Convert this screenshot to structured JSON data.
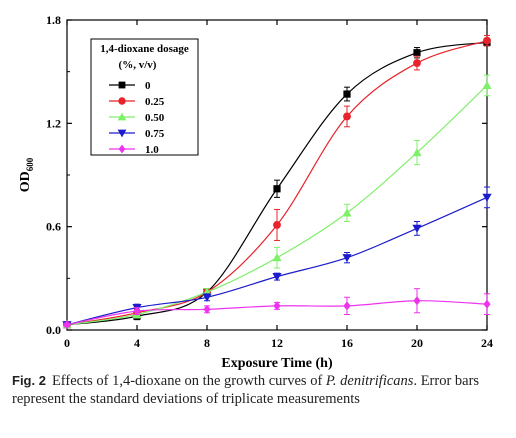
{
  "chart_data": {
    "type": "line",
    "xlabel": "Exposure Time (h)",
    "ylabel": "OD",
    "ylabel_sub": "600",
    "xlim": [
      0,
      24
    ],
    "ylim": [
      0.0,
      1.8
    ],
    "xticks": [
      0,
      4,
      8,
      12,
      16,
      20,
      24
    ],
    "yticks": [
      0.0,
      0.6,
      1.2,
      1.8
    ],
    "ytick_labels": [
      "0.0",
      "0.6",
      "1.2",
      "1.8"
    ],
    "grid": false,
    "legend": {
      "placement": "top-left",
      "title_line1": "1,4-dioxane dosage",
      "title_line2": "(%, v/v)"
    },
    "x": [
      0,
      4,
      8,
      12,
      16,
      20,
      24
    ],
    "series": [
      {
        "name": "0",
        "color": "#000000",
        "marker": "square",
        "values": [
          0.03,
          0.08,
          0.22,
          0.82,
          1.37,
          1.61,
          1.67
        ],
        "errors": [
          0.01,
          0.02,
          0.02,
          0.05,
          0.04,
          0.03,
          0.02
        ]
      },
      {
        "name": "0.25",
        "color": "#e8232b",
        "marker": "circle",
        "values": [
          0.03,
          0.1,
          0.22,
          0.61,
          1.24,
          1.55,
          1.68
        ],
        "errors": [
          0.01,
          0.02,
          0.02,
          0.09,
          0.06,
          0.04,
          0.03
        ]
      },
      {
        "name": "0.50",
        "color": "#7ff06a",
        "marker": "triangle-up",
        "values": [
          0.03,
          0.09,
          0.22,
          0.42,
          0.68,
          1.03,
          1.42
        ],
        "errors": [
          0.01,
          0.02,
          0.02,
          0.06,
          0.05,
          0.07,
          0.06
        ]
      },
      {
        "name": "0.75",
        "color": "#1c1ccc",
        "marker": "triangle-down",
        "values": [
          0.03,
          0.13,
          0.19,
          0.31,
          0.42,
          0.59,
          0.77
        ],
        "errors": [
          0.01,
          0.02,
          0.02,
          0.02,
          0.03,
          0.04,
          0.06
        ]
      },
      {
        "name": "1.0",
        "color": "#ee33ee",
        "marker": "diamond",
        "values": [
          0.03,
          0.11,
          0.12,
          0.14,
          0.14,
          0.17,
          0.15
        ],
        "errors": [
          0.01,
          0.02,
          0.02,
          0.02,
          0.05,
          0.07,
          0.06
        ]
      }
    ]
  },
  "caption": {
    "label": "Fig. 2",
    "text_before": "Effects of 1,4-dioxane on the growth curves of ",
    "species": "P. denitrificans",
    "text_after": ". Error bars represent the standard deviations of triplicate measurements"
  }
}
